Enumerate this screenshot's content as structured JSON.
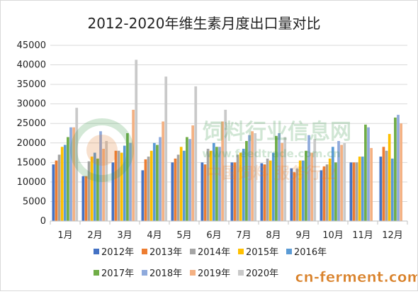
{
  "chart_data": {
    "type": "bar",
    "title": "2012-2020年维生素月度出口量对比",
    "xlabel": "",
    "ylabel": "",
    "categories": [
      "1月",
      "2月",
      "3月",
      "4月",
      "5月",
      "6月",
      "7月",
      "8月",
      "9月",
      "10月",
      "11月",
      "12月"
    ],
    "yticks": [
      "0",
      "5000",
      "10000",
      "15000",
      "20000",
      "25000",
      "30000",
      "35000",
      "40000",
      "45000"
    ],
    "ylim": [
      0,
      45000
    ],
    "grid": true,
    "legend_position": "bottom",
    "series": [
      {
        "name": "2012年",
        "color": "#4472C4",
        "values": [
          14500,
          11500,
          15000,
          13000,
          15000,
          15000,
          15000,
          14800,
          13500,
          13000,
          15000,
          16500
        ]
      },
      {
        "name": "2013年",
        "color": "#ED7D31",
        "values": [
          15500,
          11500,
          18000,
          15800,
          16000,
          14500,
          15000,
          14500,
          12500,
          14000,
          15000,
          19000
        ]
      },
      {
        "name": "2014年",
        "color": "#A5A5A5",
        "values": [
          17000,
          15300,
          18000,
          16500,
          17000,
          18500,
          17000,
          16000,
          13500,
          14500,
          15000,
          18000
        ]
      },
      {
        "name": "2015年",
        "color": "#FFC000",
        "values": [
          19000,
          16500,
          17500,
          18000,
          19000,
          18000,
          17500,
          15500,
          15500,
          16000,
          16500,
          22300
        ]
      },
      {
        "name": "2016年",
        "color": "#5B9BD5",
        "values": [
          19500,
          17500,
          19300,
          20000,
          18000,
          20000,
          18500,
          17500,
          15500,
          19000,
          16500,
          16000
        ]
      },
      {
        "name": "2017年",
        "color": "#70AD47",
        "values": [
          21500,
          16000,
          22500,
          19500,
          21500,
          19000,
          20500,
          21800,
          18000,
          15000,
          24700,
          26500
        ]
      },
      {
        "name": "2018年",
        "color": "#8FAADC",
        "values": [
          24000,
          23000,
          20000,
          21500,
          21000,
          19000,
          22000,
          22500,
          22000,
          20500,
          24000,
          27200
        ]
      },
      {
        "name": "2019年",
        "color": "#F4B183",
        "values": [
          24000,
          18500,
          28500,
          25500,
          24500,
          25500,
          23000,
          20000,
          17500,
          19500,
          18700,
          25000
        ]
      },
      {
        "name": "2020年",
        "color": "#C9C9C9",
        "values": [
          29000,
          20500,
          41300,
          37000,
          34500,
          28500,
          22500,
          21500,
          21000,
          20000,
          0,
          0
        ]
      }
    ]
  },
  "watermark": {
    "line1": "饲料行业信息网",
    "line2": "www.feedtrade.com.cn",
    "line3": "中国饲料    服务行业"
  },
  "brand": {
    "text": "cn-ferment.com"
  }
}
